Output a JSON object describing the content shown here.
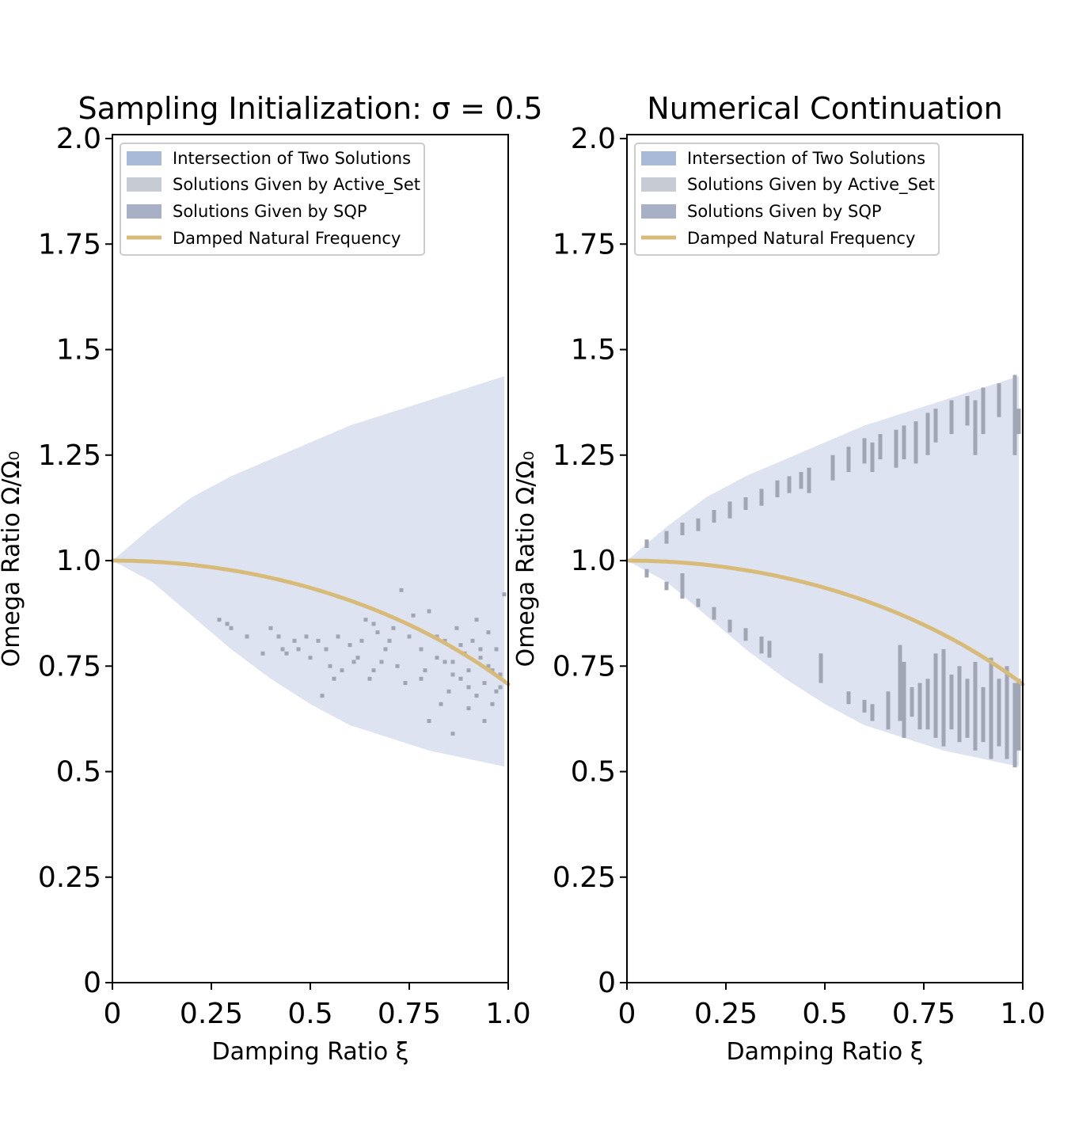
{
  "chart_data": [
    {
      "type": "heatmap",
      "title": "Sampling Initialization: σ = 0.5",
      "xlabel": "Damping Ratio ξ",
      "ylabel": "Omega Ratio Ω/Ω₀",
      "xlim": [
        0,
        1.0
      ],
      "ylim": [
        0,
        2.0
      ],
      "xticks": [
        "0",
        "0.25",
        "0.5",
        "0.75",
        "1.0"
      ],
      "yticks": [
        "0",
        "0.25",
        "0.5",
        "0.75",
        "1.0",
        "1.25",
        "1.5",
        "1.75",
        "2.0"
      ],
      "legend_position": "upper-left",
      "legend": [
        {
          "label": "Intersection of Two Solutions",
          "kind": "patch",
          "color": "#a9bad9"
        },
        {
          "label": "Solutions Given by Active_Set",
          "kind": "patch",
          "color": "#c6cbd4"
        },
        {
          "label": "Solutions Given by SQP",
          "kind": "patch",
          "color": "#a7b0c4"
        },
        {
          "label": "Damped Natural Frequency",
          "kind": "line",
          "color": "#d8bb79"
        }
      ],
      "region_color": "#dde3f0",
      "region_xmax": 0.99,
      "region_boundary": [
        {
          "x": 0,
          "upper": 1.0,
          "lower": 1.0
        },
        {
          "x": 0.1,
          "upper": 1.08,
          "lower": 0.95
        },
        {
          "x": 0.2,
          "upper": 1.15,
          "lower": 0.87
        },
        {
          "x": 0.3,
          "upper": 1.2,
          "lower": 0.79
        },
        {
          "x": 0.4,
          "upper": 1.24,
          "lower": 0.72
        },
        {
          "x": 0.5,
          "upper": 1.28,
          "lower": 0.66
        },
        {
          "x": 0.6,
          "upper": 1.32,
          "lower": 0.61
        },
        {
          "x": 0.7,
          "upper": 1.35,
          "lower": 0.58
        },
        {
          "x": 0.8,
          "upper": 1.38,
          "lower": 0.55
        },
        {
          "x": 0.9,
          "upper": 1.41,
          "lower": 0.53
        },
        {
          "x": 1.0,
          "upper": 1.44,
          "lower": 0.51
        }
      ],
      "line": {
        "name": "Damped Natural Frequency",
        "formula": "sqrt(1 - x^2 / 2)",
        "x_from": 0,
        "x_to": 1.0
      },
      "marker_color": "#a0a6b3",
      "markers": [
        [
          0.27,
          0.86
        ],
        [
          0.3,
          0.84
        ],
        [
          0.34,
          0.82
        ],
        [
          0.4,
          0.84
        ],
        [
          0.42,
          0.82
        ],
        [
          0.43,
          0.79
        ],
        [
          0.46,
          0.81
        ],
        [
          0.47,
          0.79
        ],
        [
          0.49,
          0.82
        ],
        [
          0.5,
          0.77
        ],
        [
          0.52,
          0.81
        ],
        [
          0.54,
          0.79
        ],
        [
          0.55,
          0.75
        ],
        [
          0.57,
          0.82
        ],
        [
          0.58,
          0.74
        ],
        [
          0.6,
          0.8
        ],
        [
          0.62,
          0.77
        ],
        [
          0.63,
          0.81
        ],
        [
          0.64,
          0.86
        ],
        [
          0.65,
          0.72
        ],
        [
          0.66,
          0.85
        ],
        [
          0.67,
          0.83
        ],
        [
          0.68,
          0.76
        ],
        [
          0.69,
          0.79
        ],
        [
          0.7,
          0.81
        ],
        [
          0.72,
          0.75
        ],
        [
          0.73,
          0.93
        ],
        [
          0.75,
          0.82
        ],
        [
          0.76,
          0.87
        ],
        [
          0.78,
          0.79
        ],
        [
          0.79,
          0.74
        ],
        [
          0.8,
          0.88
        ],
        [
          0.82,
          0.77
        ],
        [
          0.83,
          0.66
        ],
        [
          0.84,
          0.81
        ],
        [
          0.85,
          0.69
        ],
        [
          0.86,
          0.76
        ],
        [
          0.87,
          0.84
        ],
        [
          0.88,
          0.72
        ],
        [
          0.89,
          0.78
        ],
        [
          0.9,
          0.74
        ],
        [
          0.91,
          0.81
        ],
        [
          0.92,
          0.68
        ],
        [
          0.93,
          0.77
        ],
        [
          0.94,
          0.71
        ],
        [
          0.95,
          0.83
        ],
        [
          0.96,
          0.74
        ],
        [
          0.97,
          0.79
        ],
        [
          0.98,
          0.73
        ],
        [
          0.99,
          0.92
        ],
        [
          0.97,
          0.69
        ],
        [
          0.95,
          0.75
        ],
        [
          0.93,
          0.79
        ],
        [
          0.92,
          0.86
        ],
        [
          0.9,
          0.7
        ],
        [
          0.88,
          0.8
        ],
        [
          0.86,
          0.73
        ],
        [
          0.84,
          0.76
        ],
        [
          0.82,
          0.82
        ],
        [
          0.8,
          0.62
        ],
        [
          0.78,
          0.72
        ],
        [
          0.74,
          0.71
        ],
        [
          0.71,
          0.84
        ],
        [
          0.66,
          0.74
        ],
        [
          0.61,
          0.76
        ],
        [
          0.56,
          0.72
        ],
        [
          0.53,
          0.68
        ],
        [
          0.44,
          0.78
        ],
        [
          0.38,
          0.78
        ],
        [
          0.29,
          0.85
        ],
        [
          0.98,
          0.7
        ],
        [
          0.96,
          0.66
        ],
        [
          0.94,
          0.62
        ],
        [
          0.9,
          0.65
        ],
        [
          0.86,
          0.59
        ]
      ]
    },
    {
      "type": "heatmap",
      "title": "Numerical Continuation",
      "xlabel": "Damping Ratio ξ",
      "ylabel": "Omega Ratio Ω/Ω₀",
      "xlim": [
        0,
        1.0
      ],
      "ylim": [
        0,
        2.0
      ],
      "xticks": [
        "0",
        "0.25",
        "0.5",
        "0.75",
        "1.0"
      ],
      "yticks": [
        "0",
        "0.25",
        "0.5",
        "0.75",
        "1.0",
        "1.25",
        "1.5",
        "1.75",
        "2.0"
      ],
      "legend_position": "upper-left",
      "legend": [
        {
          "label": "Intersection of Two Solutions",
          "kind": "patch",
          "color": "#a9bad9"
        },
        {
          "label": "Solutions Given by Active_Set",
          "kind": "patch",
          "color": "#c6cbd4"
        },
        {
          "label": "Solutions Given by SQP",
          "kind": "patch",
          "color": "#a7b0c4"
        },
        {
          "label": "Damped Natural Frequency",
          "kind": "line",
          "color": "#d8bb79"
        }
      ],
      "region_color": "#dde3f0",
      "region_xmax": 0.99,
      "region_boundary": [
        {
          "x": 0,
          "upper": 1.0,
          "lower": 1.0
        },
        {
          "x": 0.1,
          "upper": 1.08,
          "lower": 0.95
        },
        {
          "x": 0.2,
          "upper": 1.15,
          "lower": 0.87
        },
        {
          "x": 0.3,
          "upper": 1.2,
          "lower": 0.79
        },
        {
          "x": 0.4,
          "upper": 1.24,
          "lower": 0.72
        },
        {
          "x": 0.5,
          "upper": 1.28,
          "lower": 0.66
        },
        {
          "x": 0.6,
          "upper": 1.32,
          "lower": 0.61
        },
        {
          "x": 0.7,
          "upper": 1.35,
          "lower": 0.58
        },
        {
          "x": 0.8,
          "upper": 1.38,
          "lower": 0.55
        },
        {
          "x": 0.9,
          "upper": 1.41,
          "lower": 0.53
        },
        {
          "x": 1.0,
          "upper": 1.44,
          "lower": 0.51
        }
      ],
      "line": {
        "name": "Damped Natural Frequency",
        "formula": "sqrt(1 - x^2 / 2)",
        "x_from": 0,
        "x_to": 1.0
      },
      "marker_color": "#a0a6b3",
      "bars": [
        [
          0.05,
          1.03,
          1.05
        ],
        [
          0.1,
          1.04,
          1.07
        ],
        [
          0.14,
          1.06,
          1.09
        ],
        [
          0.18,
          1.07,
          1.1
        ],
        [
          0.22,
          1.09,
          1.12
        ],
        [
          0.26,
          1.1,
          1.14
        ],
        [
          0.3,
          1.12,
          1.15
        ],
        [
          0.34,
          1.13,
          1.17
        ],
        [
          0.38,
          1.15,
          1.19
        ],
        [
          0.41,
          1.16,
          1.2
        ],
        [
          0.44,
          1.17,
          1.21
        ],
        [
          0.46,
          1.16,
          1.22
        ],
        [
          0.52,
          1.19,
          1.25
        ],
        [
          0.56,
          1.21,
          1.27
        ],
        [
          0.6,
          1.23,
          1.29
        ],
        [
          0.62,
          1.21,
          1.28
        ],
        [
          0.64,
          1.24,
          1.3
        ],
        [
          0.68,
          1.22,
          1.31
        ],
        [
          0.7,
          1.24,
          1.32
        ],
        [
          0.73,
          1.23,
          1.33
        ],
        [
          0.76,
          1.25,
          1.35
        ],
        [
          0.78,
          1.28,
          1.36
        ],
        [
          0.82,
          1.3,
          1.38
        ],
        [
          0.86,
          1.32,
          1.39
        ],
        [
          0.88,
          1.25,
          1.38
        ],
        [
          0.9,
          1.3,
          1.41
        ],
        [
          0.94,
          1.34,
          1.42
        ],
        [
          0.98,
          1.25,
          1.44
        ],
        [
          0.99,
          1.3,
          1.36
        ],
        [
          0.05,
          0.96,
          0.98
        ],
        [
          0.1,
          0.93,
          0.95
        ],
        [
          0.14,
          0.91,
          0.97
        ],
        [
          0.18,
          0.89,
          0.91
        ],
        [
          0.22,
          0.86,
          0.89
        ],
        [
          0.26,
          0.83,
          0.86
        ],
        [
          0.3,
          0.81,
          0.84
        ],
        [
          0.34,
          0.78,
          0.82
        ],
        [
          0.36,
          0.77,
          0.81
        ],
        [
          0.49,
          0.71,
          0.78
        ],
        [
          0.56,
          0.66,
          0.69
        ],
        [
          0.6,
          0.64,
          0.67
        ],
        [
          0.62,
          0.62,
          0.66
        ],
        [
          0.66,
          0.6,
          0.69
        ],
        [
          0.69,
          0.62,
          0.8
        ],
        [
          0.7,
          0.58,
          0.76
        ],
        [
          0.72,
          0.63,
          0.7
        ],
        [
          0.74,
          0.6,
          0.71
        ],
        [
          0.76,
          0.6,
          0.72
        ],
        [
          0.78,
          0.58,
          0.78
        ],
        [
          0.8,
          0.56,
          0.79
        ],
        [
          0.82,
          0.6,
          0.73
        ],
        [
          0.84,
          0.57,
          0.75
        ],
        [
          0.86,
          0.58,
          0.72
        ],
        [
          0.88,
          0.55,
          0.76
        ],
        [
          0.9,
          0.57,
          0.7
        ],
        [
          0.92,
          0.53,
          0.77
        ],
        [
          0.94,
          0.56,
          0.72
        ],
        [
          0.96,
          0.53,
          0.75
        ],
        [
          0.98,
          0.51,
          0.71
        ],
        [
          0.99,
          0.55,
          0.72
        ]
      ]
    }
  ]
}
